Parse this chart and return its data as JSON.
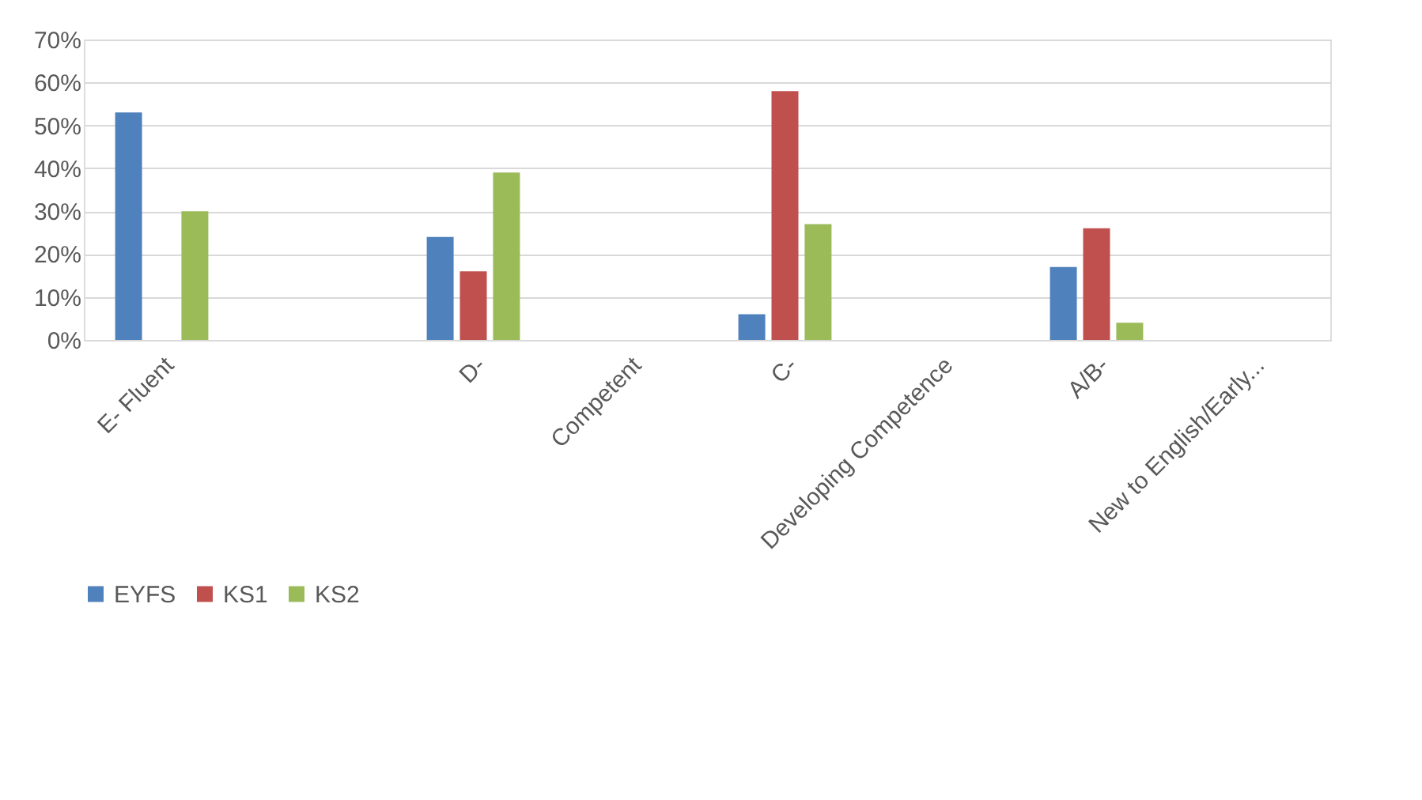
{
  "chart_data": {
    "type": "bar",
    "categories": [
      "E- Fluent",
      null,
      "D-",
      "Competent",
      "C-",
      "Developing Competence",
      "A/B-",
      "New to English/Early..."
    ],
    "series": [
      {
        "name": "EYFS",
        "color": "#4f81bd",
        "values": [
          53,
          null,
          24,
          null,
          6,
          null,
          17,
          null
        ]
      },
      {
        "name": "KS1",
        "color": "#c0504d",
        "values": [
          0,
          null,
          16,
          null,
          58,
          null,
          26,
          null
        ]
      },
      {
        "name": "KS2",
        "color": "#9bbb59",
        "values": [
          30,
          null,
          39,
          null,
          27,
          null,
          4,
          null
        ]
      }
    ],
    "ylim": [
      0,
      70
    ],
    "yticks": [
      {
        "value": 0,
        "label": "0%"
      },
      {
        "value": 10,
        "label": "10%"
      },
      {
        "value": 20,
        "label": "20%"
      },
      {
        "value": 30,
        "label": "30%"
      },
      {
        "value": 40,
        "label": "40%"
      },
      {
        "value": 50,
        "label": "50%"
      },
      {
        "value": 60,
        "label": "60%"
      },
      {
        "value": 70,
        "label": "70%"
      }
    ],
    "grid": "y",
    "legend": "bottom"
  }
}
